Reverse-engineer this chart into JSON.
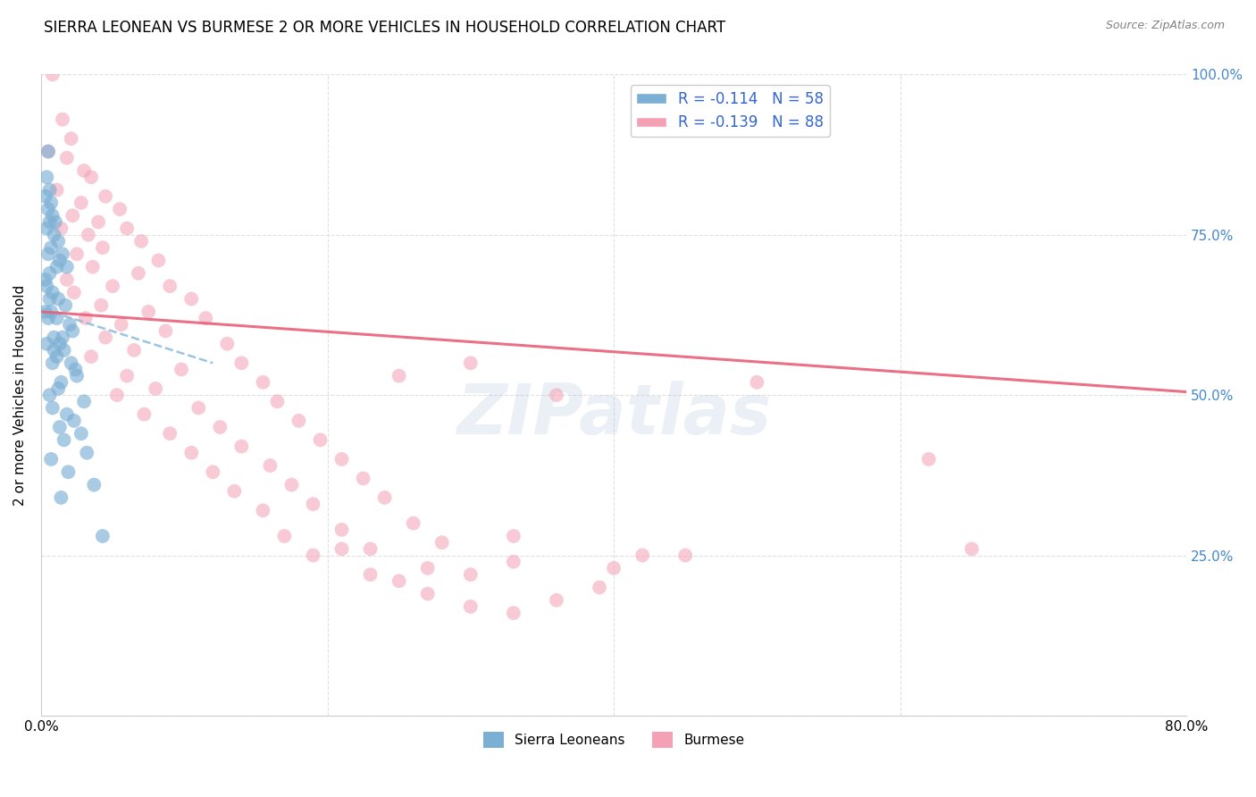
{
  "title": "SIERRA LEONEAN VS BURMESE 2 OR MORE VEHICLES IN HOUSEHOLD CORRELATION CHART",
  "source": "Source: ZipAtlas.com",
  "ylabel": "2 or more Vehicles in Household",
  "xlim": [
    0.0,
    80.0
  ],
  "ylim": [
    0.0,
    100.0
  ],
  "blue_color": "#7bafd4",
  "pink_color": "#f4a0b5",
  "blue_line_color": "#88bbdd",
  "pink_line_color": "#e8607a",
  "watermark": "ZIPatlas",
  "background_color": "#ffffff",
  "grid_color": "#dddddd",
  "sl_x": [
    0.5,
    0.4,
    0.6,
    0.3,
    0.7,
    0.5,
    0.8,
    0.6,
    1.0,
    0.4,
    0.9,
    1.2,
    0.7,
    0.5,
    1.5,
    1.3,
    1.8,
    1.1,
    0.6,
    0.3,
    0.4,
    0.8,
    1.2,
    0.6,
    1.7,
    0.7,
    0.3,
    1.1,
    0.5,
    2.0,
    2.2,
    1.5,
    0.9,
    1.3,
    0.4,
    0.9,
    1.6,
    1.1,
    2.1,
    0.8,
    2.4,
    2.5,
    1.4,
    1.2,
    0.6,
    3.0,
    0.8,
    1.8,
    2.3,
    1.3,
    2.8,
    1.6,
    3.2,
    0.7,
    1.9,
    3.7,
    1.4,
    4.3
  ],
  "sl_y": [
    88,
    84,
    82,
    81,
    80,
    79,
    78,
    77,
    77,
    76,
    75,
    74,
    73,
    72,
    72,
    71,
    70,
    70,
    69,
    68,
    67,
    66,
    65,
    65,
    64,
    63,
    63,
    62,
    62,
    61,
    60,
    59,
    59,
    58,
    58,
    57,
    57,
    56,
    55,
    55,
    54,
    53,
    52,
    51,
    50,
    49,
    48,
    47,
    46,
    45,
    44,
    43,
    41,
    40,
    38,
    36,
    34,
    28
  ],
  "bm_x": [
    0.8,
    1.5,
    2.1,
    0.5,
    1.8,
    3.0,
    3.5,
    1.1,
    4.5,
    2.8,
    5.5,
    2.2,
    4.0,
    1.4,
    6.0,
    3.3,
    7.0,
    4.3,
    2.5,
    8.2,
    3.6,
    6.8,
    1.8,
    9.0,
    5.0,
    2.3,
    10.5,
    4.2,
    7.5,
    3.1,
    11.5,
    5.6,
    8.7,
    4.5,
    13.0,
    6.5,
    3.5,
    14.0,
    9.8,
    6.0,
    15.5,
    8.0,
    5.3,
    16.5,
    11.0,
    7.2,
    18.0,
    12.5,
    9.0,
    19.5,
    14.0,
    10.5,
    21.0,
    16.0,
    12.0,
    22.5,
    17.5,
    13.5,
    24.0,
    19.0,
    15.5,
    26.0,
    21.0,
    17.0,
    28.0,
    23.0,
    19.0,
    30.0,
    25.0,
    21.0,
    33.0,
    27.0,
    23.0,
    36.0,
    30.0,
    25.0,
    39.0,
    33.0,
    27.0,
    42.0,
    36.0,
    30.0,
    45.0,
    40.0,
    33.0,
    50.0,
    62.0,
    65.0
  ],
  "bm_y": [
    100,
    93,
    90,
    88,
    87,
    85,
    84,
    82,
    81,
    80,
    79,
    78,
    77,
    76,
    76,
    75,
    74,
    73,
    72,
    71,
    70,
    69,
    68,
    67,
    67,
    66,
    65,
    64,
    63,
    62,
    62,
    61,
    60,
    59,
    58,
    57,
    56,
    55,
    54,
    53,
    52,
    51,
    50,
    49,
    48,
    47,
    46,
    45,
    44,
    43,
    42,
    41,
    40,
    39,
    38,
    37,
    36,
    35,
    34,
    33,
    32,
    30,
    29,
    28,
    27,
    26,
    25,
    55,
    53,
    26,
    24,
    23,
    22,
    50,
    22,
    21,
    20,
    28,
    19,
    25,
    18,
    17,
    25,
    23,
    16,
    52,
    40,
    26
  ],
  "sl_trend_x": [
    0.0,
    12.0
  ],
  "sl_trend_y": [
    63.5,
    55.0
  ],
  "bm_trend_x": [
    0.0,
    80.0
  ],
  "bm_trend_y": [
    63.0,
    50.5
  ]
}
